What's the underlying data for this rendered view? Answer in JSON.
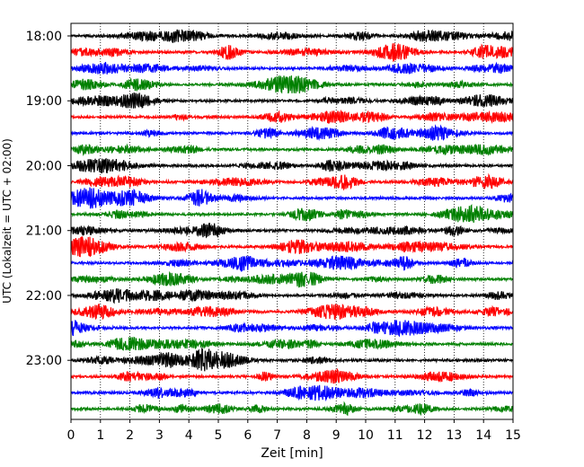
{
  "chart_data": {
    "type": "line",
    "title": "",
    "xlabel": "Zeit  [min]",
    "ylabel": "UTC (Lokalzeit = UTC + 02:00)",
    "xlim": [
      0,
      15
    ],
    "x_ticks": [
      0,
      1,
      2,
      3,
      4,
      5,
      6,
      7,
      8,
      9,
      10,
      11,
      12,
      13,
      14,
      15
    ],
    "x_tick_labels": [
      "0",
      "1",
      "2",
      "3",
      "4",
      "5",
      "6",
      "7",
      "8",
      "9",
      "10",
      "11",
      "12",
      "13",
      "14",
      "15"
    ],
    "y_tick_labels": [
      "18:00",
      "19:00",
      "20:00",
      "21:00",
      "22:00",
      "23:00"
    ],
    "row_minutes": 15,
    "start_time": "18:00",
    "grid": "vertical-dotted",
    "color_cycle": [
      "#000000",
      "#ff0000",
      "#0000ff",
      "#008000"
    ],
    "rows": [
      "18:00",
      "18:15",
      "18:30",
      "18:45",
      "19:00",
      "19:15",
      "19:30",
      "19:45",
      "20:00",
      "20:15",
      "20:30",
      "20:45",
      "21:00",
      "21:15",
      "21:30",
      "21:45",
      "22:00",
      "22:15",
      "22:30",
      "22:45",
      "23:00",
      "23:15",
      "23:30",
      "23:45"
    ]
  }
}
